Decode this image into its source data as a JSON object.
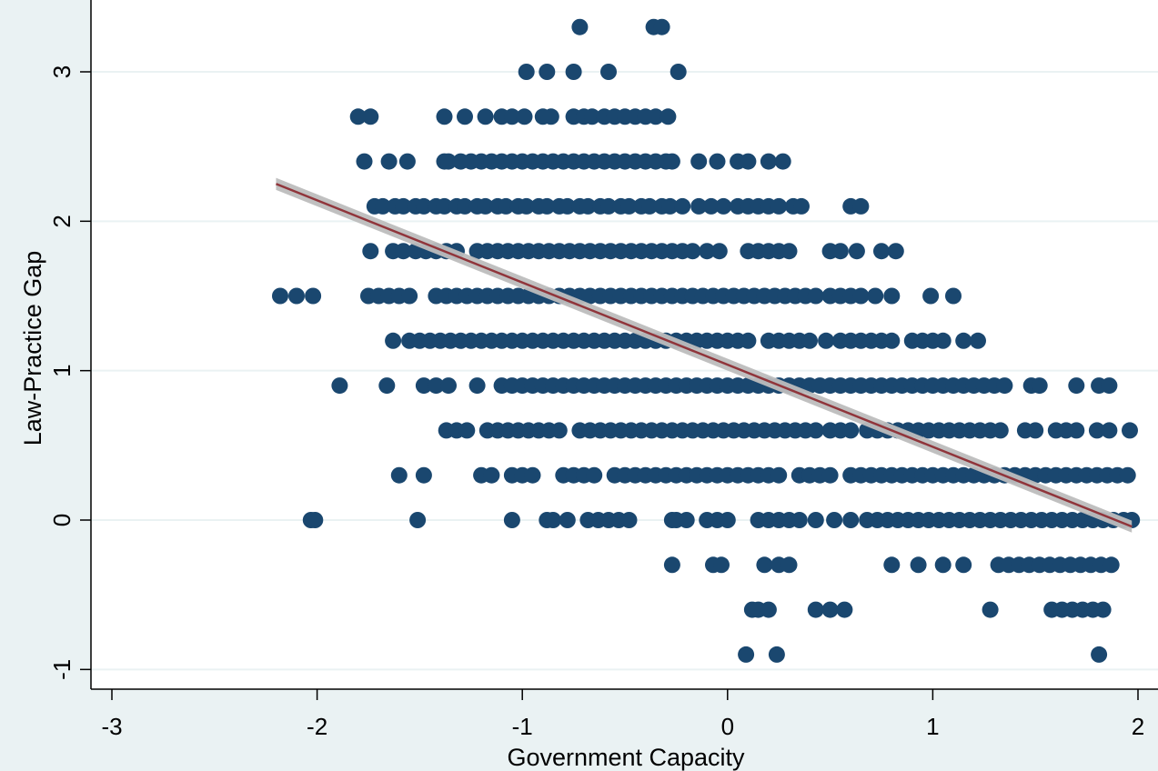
{
  "chart_data": {
    "type": "scatter",
    "title": "",
    "xlabel": "Government Capacity",
    "ylabel": "Law-Practice Gap",
    "xlim": [
      -3.1,
      2.1
    ],
    "ylim": [
      -1.1,
      3.4
    ],
    "xticks": [
      -3,
      -2,
      -1,
      0,
      1,
      2
    ],
    "yticks": [
      -1,
      0,
      1,
      2,
      3
    ],
    "xtick_labels": [
      "-3",
      "-2",
      "-1",
      "0",
      "1",
      "2"
    ],
    "ytick_labels": [
      "-1",
      "0",
      "1",
      "2",
      "3"
    ],
    "grid": "horizontal",
    "legend": "none",
    "colors": {
      "plot_bg": "#ffffff",
      "outer_bg": "#eaf2f3",
      "points": "#1a476f",
      "fit_line": "#90353b",
      "ci_band": "#bdbdbd",
      "grid": "#eaf2f3"
    },
    "fit": {
      "type": "linear",
      "x_range": [
        -2.2,
        1.97
      ],
      "intercept": 1.04,
      "slope": -0.55,
      "ci_halfwidth": 0.04
    },
    "series": [
      {
        "point_rows": [
          {
            "y": 3.3,
            "x": [
              -0.72,
              -0.36,
              -0.32
            ]
          },
          {
            "y": 3.0,
            "x": [
              -0.98,
              -0.88,
              -0.75,
              -0.58,
              -0.24
            ]
          },
          {
            "y": 2.7,
            "x": [
              -1.8,
              -1.74,
              -1.38,
              -1.28,
              -1.18,
              -1.1,
              -1.05,
              -0.99,
              -0.9,
              -0.86,
              -0.75,
              -0.7,
              -0.66,
              -0.6,
              -0.55,
              -0.5,
              -0.45,
              -0.4,
              -0.35,
              -0.29
            ]
          },
          {
            "y": 2.4,
            "x": [
              -1.77,
              -1.65,
              -1.56,
              -1.38,
              -1.36,
              -1.3,
              -1.25,
              -1.2,
              -1.15,
              -1.1,
              -1.05,
              -1.0,
              -0.95,
              -0.9,
              -0.85,
              -0.8,
              -0.75,
              -0.7,
              -0.65,
              -0.6,
              -0.55,
              -0.5,
              -0.45,
              -0.4,
              -0.35,
              -0.3,
              -0.27,
              -0.14,
              -0.05,
              0.05,
              0.1,
              0.2,
              0.27
            ]
          },
          {
            "y": 2.1,
            "x": [
              -1.72,
              -1.68,
              -1.62,
              -1.58,
              -1.52,
              -1.48,
              -1.42,
              -1.38,
              -1.32,
              -1.28,
              -1.22,
              -1.18,
              -1.12,
              -1.08,
              -1.02,
              -0.98,
              -0.92,
              -0.88,
              -0.82,
              -0.78,
              -0.72,
              -0.68,
              -0.62,
              -0.58,
              -0.52,
              -0.48,
              -0.42,
              -0.38,
              -0.32,
              -0.28,
              -0.22,
              -0.14,
              -0.08,
              -0.02,
              0.05,
              0.1,
              0.15,
              0.2,
              0.25,
              0.32,
              0.36,
              0.6,
              0.65
            ]
          },
          {
            "y": 1.8,
            "x": [
              -1.74,
              -1.63,
              -1.58,
              -1.52,
              -1.47,
              -1.42,
              -1.37,
              -1.32,
              -1.22,
              -1.17,
              -1.12,
              -1.07,
              -1.02,
              -0.97,
              -0.92,
              -0.87,
              -0.82,
              -0.77,
              -0.72,
              -0.67,
              -0.62,
              -0.57,
              -0.52,
              -0.47,
              -0.42,
              -0.37,
              -0.32,
              -0.27,
              -0.22,
              -0.17,
              -0.1,
              -0.04,
              0.1,
              0.15,
              0.2,
              0.25,
              0.3,
              0.5,
              0.55,
              0.63,
              0.75,
              0.82
            ]
          },
          {
            "y": 1.5,
            "x": [
              -2.18,
              -2.1,
              -2.02,
              -1.75,
              -1.7,
              -1.65,
              -1.6,
              -1.55,
              -1.42,
              -1.37,
              -1.32,
              -1.27,
              -1.22,
              -1.17,
              -1.12,
              -1.07,
              -1.02,
              -0.97,
              -0.92,
              -0.87,
              -0.82,
              -0.77,
              -0.72,
              -0.67,
              -0.62,
              -0.57,
              -0.52,
              -0.47,
              -0.42,
              -0.37,
              -0.32,
              -0.27,
              -0.22,
              -0.17,
              -0.12,
              -0.07,
              -0.02,
              0.03,
              0.08,
              0.13,
              0.18,
              0.23,
              0.28,
              0.33,
              0.38,
              0.43,
              0.5,
              0.55,
              0.6,
              0.65,
              0.72,
              0.8,
              0.99,
              1.1
            ]
          },
          {
            "y": 1.2,
            "x": [
              -1.63,
              -1.55,
              -1.5,
              -1.45,
              -1.4,
              -1.35,
              -1.3,
              -1.25,
              -1.2,
              -1.15,
              -1.1,
              -1.05,
              -1.0,
              -0.95,
              -0.9,
              -0.85,
              -0.8,
              -0.75,
              -0.7,
              -0.65,
              -0.6,
              -0.55,
              -0.5,
              -0.45,
              -0.4,
              -0.35,
              -0.3,
              -0.25,
              -0.2,
              -0.15,
              -0.1,
              -0.05,
              0.0,
              0.05,
              0.1,
              0.2,
              0.25,
              0.3,
              0.35,
              0.4,
              0.48,
              0.55,
              0.6,
              0.65,
              0.7,
              0.75,
              0.8,
              0.9,
              0.95,
              1.0,
              1.05,
              1.15,
              1.22
            ]
          },
          {
            "y": 0.9,
            "x": [
              -1.89,
              -1.66,
              -1.48,
              -1.42,
              -1.36,
              -1.22,
              -1.1,
              -1.05,
              -1.0,
              -0.95,
              -0.9,
              -0.85,
              -0.8,
              -0.75,
              -0.7,
              -0.65,
              -0.6,
              -0.55,
              -0.5,
              -0.45,
              -0.4,
              -0.35,
              -0.3,
              -0.25,
              -0.2,
              -0.15,
              -0.1,
              -0.05,
              0.0,
              0.05,
              0.1,
              0.15,
              0.2,
              0.25,
              0.3,
              0.35,
              0.4,
              0.45,
              0.5,
              0.55,
              0.6,
              0.65,
              0.7,
              0.75,
              0.8,
              0.85,
              0.9,
              0.95,
              1.0,
              1.05,
              1.1,
              1.15,
              1.2,
              1.25,
              1.3,
              1.35,
              1.48,
              1.52,
              1.7,
              1.81,
              1.86
            ]
          },
          {
            "y": 0.6,
            "x": [
              -1.37,
              -1.32,
              -1.27,
              -1.17,
              -1.12,
              -1.07,
              -1.02,
              -0.97,
              -0.92,
              -0.87,
              -0.82,
              -0.72,
              -0.67,
              -0.62,
              -0.57,
              -0.52,
              -0.47,
              -0.42,
              -0.37,
              -0.32,
              -0.27,
              -0.22,
              -0.17,
              -0.12,
              -0.07,
              -0.02,
              0.03,
              0.08,
              0.13,
              0.18,
              0.23,
              0.28,
              0.33,
              0.38,
              0.43,
              0.5,
              0.55,
              0.6,
              0.68,
              0.73,
              0.78,
              0.83,
              0.88,
              0.93,
              0.98,
              1.03,
              1.08,
              1.13,
              1.18,
              1.23,
              1.28,
              1.33,
              1.45,
              1.5,
              1.6,
              1.65,
              1.7,
              1.8,
              1.86,
              1.96
            ]
          },
          {
            "y": 0.3,
            "x": [
              -1.6,
              -1.48,
              -1.2,
              -1.15,
              -1.05,
              -1.0,
              -0.95,
              -0.8,
              -0.75,
              -0.7,
              -0.65,
              -0.55,
              -0.5,
              -0.45,
              -0.4,
              -0.35,
              -0.3,
              -0.25,
              -0.2,
              -0.15,
              -0.1,
              -0.05,
              0.0,
              0.05,
              0.1,
              0.15,
              0.2,
              0.25,
              0.35,
              0.4,
              0.45,
              0.5,
              0.6,
              0.65,
              0.7,
              0.75,
              0.8,
              0.85,
              0.9,
              0.95,
              1.0,
              1.05,
              1.1,
              1.15,
              1.2,
              1.25,
              1.3,
              1.35,
              1.4,
              1.45,
              1.5,
              1.55,
              1.6,
              1.65,
              1.7,
              1.75,
              1.8,
              1.85,
              1.9,
              1.95
            ]
          },
          {
            "y": 0.0,
            "x": [
              -2.03,
              -2.01,
              -1.51,
              -1.05,
              -0.88,
              -0.85,
              -0.78,
              -0.68,
              -0.63,
              -0.58,
              -0.53,
              -0.48,
              -0.27,
              -0.25,
              -0.2,
              -0.1,
              -0.05,
              0.0,
              0.15,
              0.2,
              0.25,
              0.3,
              0.35,
              0.43,
              0.52,
              0.6,
              0.68,
              0.73,
              0.78,
              0.83,
              0.88,
              0.93,
              0.98,
              1.03,
              1.08,
              1.13,
              1.18,
              1.23,
              1.28,
              1.33,
              1.38,
              1.43,
              1.48,
              1.53,
              1.58,
              1.63,
              1.68,
              1.73,
              1.78,
              1.83,
              1.88,
              1.93,
              1.97
            ]
          },
          {
            "y": -0.3,
            "x": [
              -0.27,
              -0.07,
              -0.03,
              0.18,
              0.25,
              0.3,
              0.8,
              0.93,
              1.05,
              1.15,
              1.32,
              1.37,
              1.42,
              1.47,
              1.52,
              1.57,
              1.62,
              1.67,
              1.72,
              1.77,
              1.82,
              1.87
            ]
          },
          {
            "y": -0.6,
            "x": [
              0.12,
              0.15,
              0.2,
              0.43,
              0.5,
              0.57,
              1.28,
              1.58,
              1.63,
              1.68,
              1.73,
              1.78,
              1.83
            ]
          },
          {
            "y": -0.9,
            "x": [
              0.09,
              0.24,
              1.81
            ]
          }
        ]
      }
    ]
  }
}
